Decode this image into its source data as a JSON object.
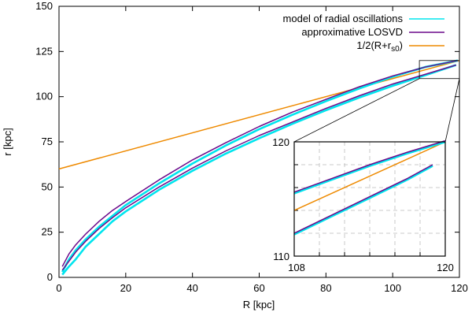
{
  "chart_data": {
    "type": "line",
    "xlabel": "R [kpc]",
    "ylabel": "r [kpc]",
    "xlim": [
      0,
      120
    ],
    "ylim": [
      0,
      150
    ],
    "xticks": [
      0,
      20,
      40,
      60,
      80,
      100,
      120
    ],
    "yticks": [
      0,
      25,
      50,
      75,
      100,
      125,
      150
    ],
    "grid": false,
    "legend_position": "top-right",
    "series": [
      {
        "name": "model of radial oscillations",
        "color": "#00e5ee",
        "segments": [
          {
            "x": [
              1,
              3,
              5,
              8,
              12,
              16,
              20,
              30,
              40,
              50,
              60,
              70,
              80,
              90,
              100,
              110,
              119.5
            ],
            "y": [
              3,
              10,
              15,
              21,
              28,
              34,
              40,
              52,
              63,
              73,
              82,
              90,
              97.5,
              104.5,
              111,
              116.5,
              120
            ]
          },
          {
            "x": [
              1,
              3,
              5,
              8,
              12,
              16,
              20,
              30,
              40,
              50,
              60,
              70,
              80,
              90,
              100,
              110,
              119
            ],
            "y": [
              1.5,
              6,
              10,
              17,
              24,
              31,
              36.5,
              48.5,
              59,
              68.5,
              77,
              85,
              92.5,
              99.5,
              106,
              112,
              117.5
            ]
          }
        ]
      },
      {
        "name": "approximative LOSVD",
        "color": "#6b0a8a",
        "segments": [
          {
            "x": [
              1,
              3,
              5,
              8,
              12,
              16,
              20,
              30,
              40,
              50,
              60,
              70,
              80,
              90,
              100,
              110,
              119.5
            ],
            "y": [
              6,
              13,
              18,
              24,
              31,
              37,
              42,
              54,
              65,
              74.5,
              83.5,
              91.5,
              98.5,
              105.5,
              111.5,
              116.5,
              120
            ]
          },
          {
            "x": [
              1,
              3,
              5,
              8,
              12,
              16,
              20,
              30,
              40,
              50,
              60,
              70,
              80,
              90,
              100,
              110,
              119
            ],
            "y": [
              4,
              9,
              14,
              20,
              27,
              33,
              38.5,
              50,
              60.5,
              70,
              78.5,
              86,
              93.5,
              100.5,
              107,
              112.5,
              117.5
            ]
          }
        ]
      },
      {
        "name": "1/2(R+r",
        "name_subscript": "s0",
        "name_suffix": ")",
        "color": "#ee8a00",
        "segments": [
          {
            "x": [
              0,
              120
            ],
            "y": [
              60,
              120
            ]
          }
        ]
      }
    ],
    "inset": {
      "source_box": {
        "xlim": [
          108,
          120
        ],
        "ylim": [
          110,
          120
        ]
      },
      "xlim": [
        108,
        120
      ],
      "ylim": [
        110,
        120
      ],
      "xtick_labels": [
        "108",
        "120"
      ],
      "ytick_labels": [
        "110",
        "120"
      ],
      "grid": true,
      "series": [
        {
          "color": "#ee8a00",
          "x": [
            108,
            120
          ],
          "y": [
            114,
            120
          ]
        },
        {
          "color": "#00e5ee",
          "x": [
            108,
            111,
            114,
            117,
            120
          ],
          "y": [
            115.5,
            116.7,
            117.9,
            119,
            120
          ]
        },
        {
          "color": "#6b0a8a",
          "x": [
            108,
            111,
            114,
            117,
            120
          ],
          "y": [
            115.6,
            116.8,
            118,
            119.1,
            120.1
          ]
        },
        {
          "color": "#00e5ee",
          "x": [
            108,
            111,
            114,
            117,
            119
          ],
          "y": [
            111.9,
            113.5,
            115.1,
            116.7,
            117.9
          ]
        },
        {
          "color": "#6b0a8a",
          "x": [
            108,
            111,
            114,
            117,
            119
          ],
          "y": [
            112,
            113.6,
            115.2,
            116.8,
            118
          ]
        }
      ]
    }
  }
}
